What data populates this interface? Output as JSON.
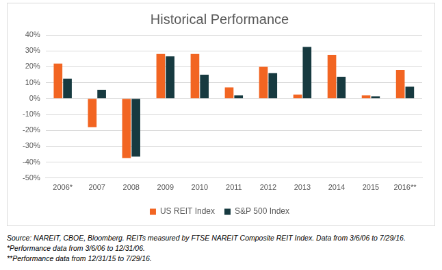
{
  "chart_data": {
    "type": "bar",
    "title": "Historical Performance",
    "categories": [
      "2006*",
      "2007",
      "2008",
      "2009",
      "2010",
      "2011",
      "2012",
      "2013",
      "2014",
      "2015",
      "2016**"
    ],
    "series": [
      {
        "name": "US REIT Index",
        "color": "#f26522",
        "values": [
          22,
          -18,
          -37.5,
          28,
          28,
          7,
          20,
          2.5,
          27.5,
          2,
          18
        ]
      },
      {
        "name": "S&P 500 Index",
        "color": "#173a40",
        "values": [
          12.5,
          5.5,
          -36.5,
          26.5,
          15,
          2,
          16,
          32.5,
          13.7,
          1.4,
          7.5
        ]
      }
    ],
    "ylim": [
      -50,
      40
    ],
    "yticks": [
      {
        "value": -50,
        "label": "-50%"
      },
      {
        "value": -40,
        "label": "-40%"
      },
      {
        "value": -30,
        "label": "-30%"
      },
      {
        "value": -20,
        "label": "-20%"
      },
      {
        "value": -10,
        "label": "-10%"
      },
      {
        "value": 0,
        "label": "0%"
      },
      {
        "value": 10,
        "label": "10%"
      },
      {
        "value": 20,
        "label": "20%"
      },
      {
        "value": 30,
        "label": "30%"
      },
      {
        "value": 40,
        "label": "40%"
      }
    ],
    "grid": true,
    "legend": "bottom",
    "annotations": [
      "Source: NAREIT, CBOE, Bloomberg. REITs measured by FTSE NAREIT Composite REIT Index. Data from 3/6/06 to 7/29/16.",
      "*Performance data from 3/6/06 to 12/31/06.",
      "**Performance data from 12/31/15 to 7/29/16."
    ]
  }
}
